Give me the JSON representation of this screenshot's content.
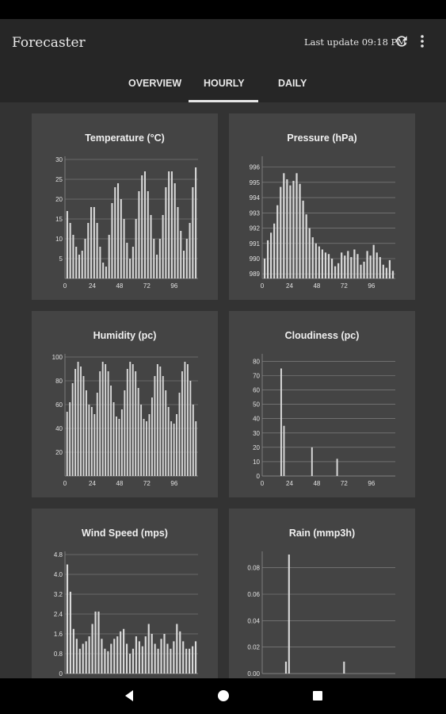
{
  "app": {
    "title": "Forecaster",
    "last_update": "Last update 09:18 PM"
  },
  "tabs": [
    {
      "label": "OVERVIEW"
    },
    {
      "label": "HOURLY"
    },
    {
      "label": "DAILY"
    }
  ],
  "selected_tab": "HOURLY",
  "colors": {
    "background": "#2b2b2b",
    "card": "#444444",
    "bar": "#d9d9d9",
    "grid": "#8a8a8a"
  },
  "icons": {
    "refresh": "refresh-icon",
    "menu": "more-vert-icon",
    "back": "nav-back-icon",
    "home": "nav-home-icon",
    "recents": "nav-recents-icon"
  },
  "chart_data": [
    {
      "id": "temperature",
      "type": "bar",
      "title": "Temperature (°C)",
      "y_ticks": [
        "5",
        "10",
        "15",
        "20",
        "25",
        "30"
      ],
      "ylim": [
        0,
        30
      ],
      "x_ticks": [
        "0",
        "24",
        "48",
        "72",
        "96"
      ],
      "x_tick_positions": [
        0,
        24,
        48,
        72,
        96
      ],
      "xlim": [
        0,
        117
      ],
      "values": [
        17,
        14,
        11,
        8,
        6,
        7,
        10,
        14,
        18,
        18,
        14,
        8,
        4,
        3,
        11,
        19,
        23,
        24,
        20,
        15,
        9,
        5,
        8,
        15,
        22,
        26,
        27,
        22,
        16,
        10,
        6,
        10,
        16,
        23,
        27,
        27,
        24,
        18,
        12,
        7,
        10,
        14,
        23,
        28
      ]
    },
    {
      "id": "pressure",
      "type": "bar",
      "title": "Pressure (hPa)",
      "y_ticks": [
        "989",
        "990",
        "991",
        "992",
        "993",
        "994",
        "995",
        "996"
      ],
      "ylim": [
        988.7,
        996.5
      ],
      "x_ticks": [
        "0",
        "24",
        "48",
        "72",
        "96"
      ],
      "x_tick_positions": [
        0,
        24,
        48,
        72,
        96
      ],
      "xlim": [
        0,
        117
      ],
      "values": [
        990.0,
        991.2,
        991.7,
        992.3,
        993.5,
        994.7,
        995.6,
        995.2,
        994.8,
        995.1,
        995.6,
        994.9,
        993.8,
        992.9,
        992.0,
        991.4,
        991.0,
        990.8,
        990.6,
        990.4,
        990.3,
        990.0,
        989.5,
        989.7,
        990.4,
        990.2,
        990.5,
        990.1,
        990.6,
        990.3,
        989.6,
        989.8,
        990.5,
        990.2,
        990.9,
        990.4,
        990.1,
        989.6,
        989.4,
        989.9,
        989.2
      ]
    },
    {
      "id": "humidity",
      "type": "bar",
      "title": "Humidity (pc)",
      "y_ticks": [
        "20",
        "40",
        "60",
        "80",
        "100"
      ],
      "ylim": [
        0,
        100
      ],
      "x_ticks": [
        "0",
        "24",
        "48",
        "72",
        "96"
      ],
      "x_tick_positions": [
        0,
        24,
        48,
        72,
        96
      ],
      "xlim": [
        0,
        117
      ],
      "values": [
        54,
        62,
        78,
        90,
        96,
        92,
        84,
        72,
        60,
        58,
        52,
        70,
        88,
        96,
        94,
        88,
        76,
        62,
        50,
        48,
        56,
        72,
        90,
        96,
        94,
        88,
        74,
        60,
        48,
        46,
        52,
        66,
        84,
        94,
        92,
        84,
        72,
        58,
        46,
        44,
        52,
        70,
        88,
        96,
        94,
        80,
        60,
        46
      ]
    },
    {
      "id": "cloudiness",
      "type": "bar",
      "title": "Cloudiness (pc)",
      "y_ticks": [
        "0",
        "10",
        "20",
        "30",
        "40",
        "50",
        "60",
        "70",
        "80"
      ],
      "ylim": [
        0,
        83
      ],
      "x_ticks": [
        "0",
        "24",
        "48",
        "72",
        "96"
      ],
      "x_tick_positions": [
        0,
        24,
        48,
        72,
        96
      ],
      "xlim": [
        0,
        117
      ],
      "values": [
        0,
        0,
        0,
        0,
        0,
        0,
        75,
        35,
        0,
        0,
        0,
        0,
        0,
        0,
        0,
        0,
        0,
        20,
        0,
        0,
        0,
        0,
        0,
        0,
        0,
        0,
        12,
        0,
        0,
        0,
        0,
        0,
        0,
        0,
        0,
        0,
        0,
        0,
        0,
        0,
        0,
        0,
        0,
        0,
        0,
        0,
        0
      ]
    },
    {
      "id": "wind",
      "type": "bar",
      "title": "Wind Speed (mps)",
      "y_ticks": [
        "0",
        "0.8",
        "1.6",
        "2.4",
        "3.2",
        "4.0",
        "4.8"
      ],
      "ylim": [
        0,
        4.8
      ],
      "x_ticks": [
        "0",
        "24",
        "48",
        "72",
        "96"
      ],
      "x_tick_positions": [
        0,
        24,
        48,
        72,
        96
      ],
      "xlim": [
        0,
        117
      ],
      "values": [
        4.4,
        3.3,
        1.8,
        1.4,
        1.0,
        1.2,
        1.3,
        1.5,
        2.0,
        2.5,
        2.5,
        1.4,
        1.0,
        0.9,
        1.2,
        1.4,
        1.5,
        1.7,
        1.8,
        1.2,
        0.8,
        1.0,
        1.5,
        1.3,
        1.1,
        1.5,
        2.0,
        1.6,
        1.2,
        1.0,
        1.4,
        1.6,
        1.2,
        1.0,
        1.3,
        2.0,
        1.7,
        1.3,
        1.0,
        1.0,
        1.1,
        1.3
      ]
    },
    {
      "id": "rain",
      "type": "bar",
      "title": "Rain (mmp3h)",
      "y_ticks": [
        "0.00",
        "0.02",
        "0.04",
        "0.06",
        "0.08"
      ],
      "ylim": [
        0,
        0.09
      ],
      "x_ticks": [
        "0",
        "24",
        "48",
        "72",
        "96"
      ],
      "x_tick_positions": [
        0,
        24,
        48,
        72,
        96
      ],
      "xlim": [
        0,
        117
      ],
      "values": [
        0,
        0,
        0,
        0,
        0,
        0,
        0,
        0.009,
        0.09,
        0,
        0,
        0,
        0,
        0,
        0,
        0,
        0,
        0,
        0,
        0,
        0,
        0,
        0,
        0,
        0,
        0,
        0.009,
        0,
        0,
        0,
        0,
        0,
        0,
        0,
        0,
        0,
        0,
        0,
        0,
        0,
        0,
        0,
        0
      ]
    }
  ]
}
